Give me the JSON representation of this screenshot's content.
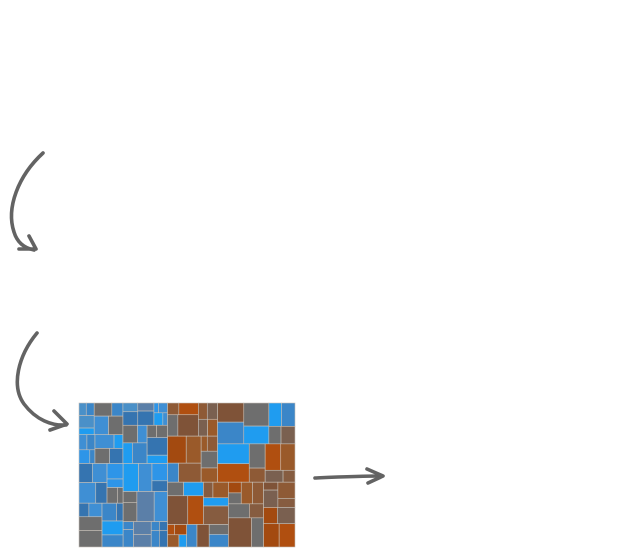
{
  "colors": {
    "background": "#ffffff",
    "arrow": "#636363",
    "blue_group": "#3b86c8",
    "blue_bright": "#1f9cf0",
    "orange_group": "#8e5a36",
    "orange_deep": "#a34a10",
    "gray": "#6e6e6e",
    "tile_border": "#c7c0b8"
  },
  "icons": {
    "arrow_1": "curved-arrow-down-icon",
    "arrow_2": "curved-arrow-down-right-icon",
    "arrow_3": "arrow-right-icon"
  },
  "treemap": {
    "groups": [
      {
        "name": "",
        "color": "#3b86c8",
        "share": 0.41
      },
      {
        "name": "",
        "color": "#8e5a36",
        "share": 0.59
      }
    ]
  }
}
